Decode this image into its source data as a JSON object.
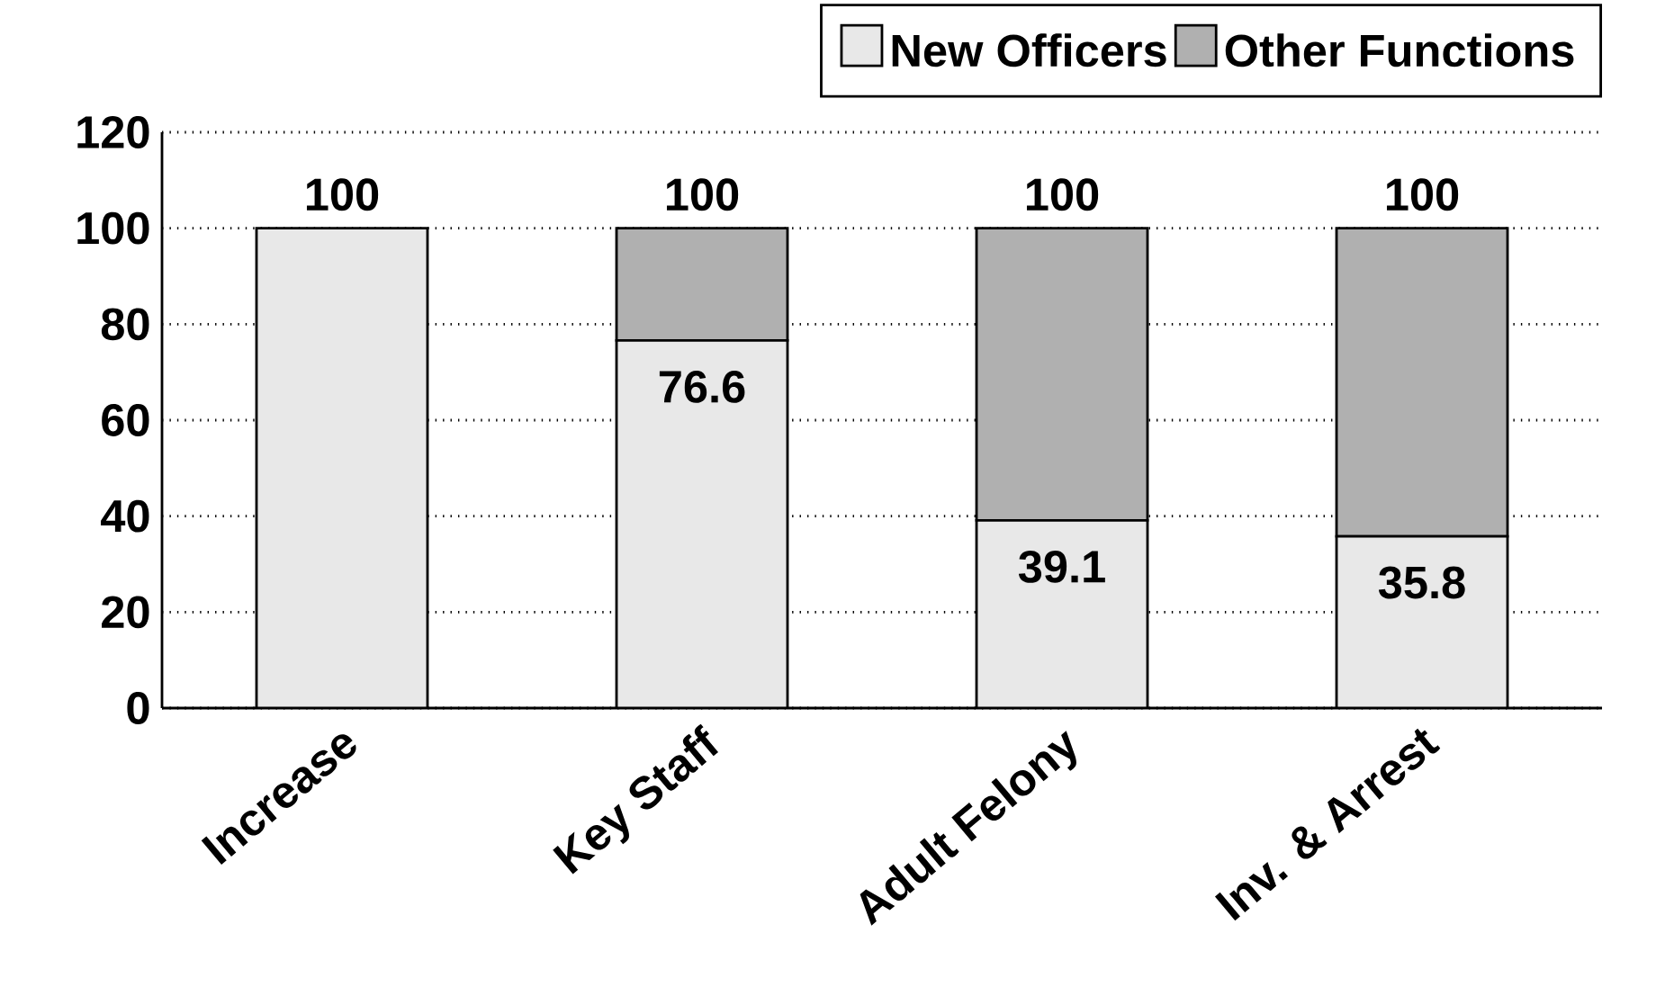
{
  "chart_data": {
    "type": "bar",
    "stacked": true,
    "categories": [
      "Increase",
      "Key Staff",
      "Adult Felony",
      "Inv. & Arrest"
    ],
    "series": [
      {
        "name": "New Officers",
        "color": "#e8e8e8",
        "values": [
          100,
          76.6,
          39.1,
          35.8
        ],
        "value_labels": [
          null,
          "76.6",
          "39.1",
          "35.8"
        ]
      },
      {
        "name": "Other Functions",
        "color": "#b0b0b0",
        "values": [
          0,
          23.4,
          60.9,
          64.2
        ]
      }
    ],
    "totals": [
      "100",
      "100",
      "100",
      "100"
    ],
    "ylim": [
      0,
      120
    ],
    "yticks": [
      0,
      20,
      40,
      60,
      80,
      100,
      120
    ],
    "grid": "y",
    "legend": "top right"
  }
}
